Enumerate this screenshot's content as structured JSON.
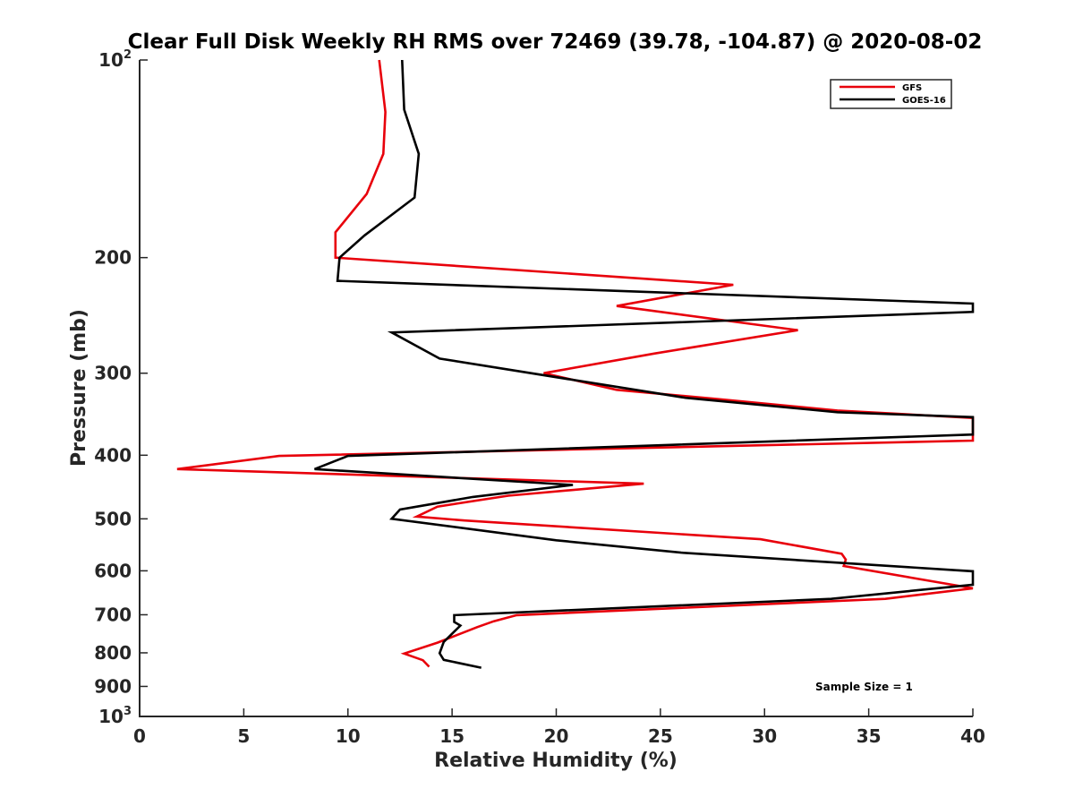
{
  "chart_data": {
    "type": "line",
    "title": "Clear Full Disk Weekly RH RMS over 72469 (39.78, -104.87) @ 2020-08-02",
    "xlabel": "Relative Humidity (%)",
    "ylabel": "Pressure (mb)",
    "xlim": [
      0,
      40
    ],
    "ylim": [
      100,
      1000
    ],
    "yscale": "log",
    "y_reversed": true,
    "x_ticks": [
      0,
      5,
      10,
      15,
      20,
      25,
      30,
      35,
      40
    ],
    "y_ticks": [
      {
        "value": 100,
        "label": "10",
        "sup": "2"
      },
      {
        "value": 200,
        "label": "200",
        "sup": ""
      },
      {
        "value": 300,
        "label": "300",
        "sup": ""
      },
      {
        "value": 400,
        "label": "400",
        "sup": ""
      },
      {
        "value": 500,
        "label": "500",
        "sup": ""
      },
      {
        "value": 600,
        "label": "600",
        "sup": ""
      },
      {
        "value": 700,
        "label": "700",
        "sup": ""
      },
      {
        "value": 800,
        "label": "800",
        "sup": ""
      },
      {
        "value": 900,
        "label": "900",
        "sup": ""
      },
      {
        "value": 1000,
        "label": "10",
        "sup": "3"
      }
    ],
    "grid": false,
    "legend_position": "top-right",
    "annotation": "Sample Size = 1",
    "series": [
      {
        "name": "GFS",
        "color": "#e8000b",
        "points": [
          [
            11.5,
            100
          ],
          [
            11.8,
            120
          ],
          [
            11.7,
            139
          ],
          [
            10.9,
            160
          ],
          [
            9.4,
            183
          ],
          [
            9.4,
            200
          ],
          [
            28.5,
            220
          ],
          [
            22.9,
            237
          ],
          [
            31.6,
            258
          ],
          [
            24.7,
            280
          ],
          [
            19.4,
            300
          ],
          [
            22.9,
            318
          ],
          [
            27.5,
            328
          ],
          [
            33.5,
            342
          ],
          [
            40,
            351
          ],
          [
            40,
            356
          ],
          [
            40,
            380
          ],
          [
            6.7,
            401
          ],
          [
            1.8,
            420
          ],
          [
            24.2,
            442
          ],
          [
            17.7,
            461
          ],
          [
            14.3,
            479
          ],
          [
            13.3,
            496
          ],
          [
            15.6,
            503
          ],
          [
            29.8,
            537
          ],
          [
            33.7,
            565
          ],
          [
            33.9,
            577
          ],
          [
            33.8,
            590
          ],
          [
            40,
            638
          ],
          [
            35.8,
            662
          ],
          [
            18.1,
            701
          ],
          [
            17.0,
            716
          ],
          [
            16.2,
            731
          ],
          [
            14.3,
            772
          ],
          [
            12.7,
            802
          ],
          [
            13.6,
            821
          ],
          [
            13.9,
            840
          ]
        ]
      },
      {
        "name": "GOES-16",
        "color": "#000000",
        "points": [
          [
            12.6,
            100
          ],
          [
            12.7,
            119
          ],
          [
            13.4,
            139
          ],
          [
            13.2,
            162
          ],
          [
            10.8,
            185
          ],
          [
            9.6,
            200
          ],
          [
            9.5,
            217
          ],
          [
            40,
            235
          ],
          [
            40,
            242
          ],
          [
            12.1,
            260
          ],
          [
            14.4,
            285
          ],
          [
            26.2,
            327
          ],
          [
            33.5,
            344
          ],
          [
            40,
            350
          ],
          [
            40,
            372
          ],
          [
            10.0,
            401
          ],
          [
            8.4,
            420
          ],
          [
            20.8,
            444
          ],
          [
            16.0,
            463
          ],
          [
            12.5,
            484
          ],
          [
            12.1,
            500
          ],
          [
            20.0,
            539
          ],
          [
            26.0,
            563
          ],
          [
            40,
            601
          ],
          [
            40,
            630
          ],
          [
            33.2,
            662
          ],
          [
            15.1,
            701
          ],
          [
            15.1,
            718
          ],
          [
            15.4,
            727
          ],
          [
            14.6,
            770
          ],
          [
            14.4,
            801
          ],
          [
            14.6,
            820
          ],
          [
            16.4,
            843
          ]
        ]
      }
    ]
  }
}
